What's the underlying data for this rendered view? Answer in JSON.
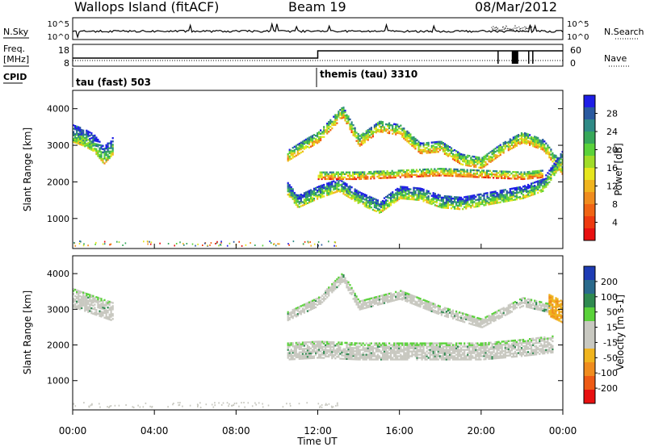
{
  "header": {
    "station": "Wallops Island (fitACF)",
    "beam": "Beam 19",
    "date": "08/Mar/2012"
  },
  "noise_panel": {
    "left_label": "N.Sky",
    "right_label": "N.Search",
    "left_ticks": [
      "10^5",
      "10^0"
    ],
    "right_ticks": [
      "10^5",
      "10^0"
    ]
  },
  "freq_panel": {
    "left_label_1": "Freq.",
    "left_label_2": "[MHz]",
    "right_label": "Nave",
    "left_ticks": [
      "18",
      "8"
    ],
    "right_ticks": [
      "60",
      "0"
    ],
    "cpid_label": "CPID",
    "modes": [
      {
        "name": "tau (fast) 503",
        "start_hour": 0
      },
      {
        "name": "themis (tau) 3310",
        "start_hour": 12
      }
    ]
  },
  "x_axis": {
    "ticks": [
      "00:00",
      "04:00",
      "08:00",
      "12:00",
      "16:00",
      "20:00",
      "00:00"
    ],
    "label": "Time UT"
  },
  "power_panel": {
    "ylabel": "Slant Range [km]",
    "yticks": [
      "4000",
      "3000",
      "2000",
      "1000"
    ],
    "colorbar_label": "Power [dB]",
    "colorbar_ticks": [
      "28",
      "24",
      "20",
      "16",
      "12",
      "8",
      "4"
    ],
    "colorbar_colors": [
      "#1e1ee6",
      "#2a5aa0",
      "#2f8a86",
      "#37a85a",
      "#5ad23a",
      "#a0dc28",
      "#e6e61e",
      "#f0b41e",
      "#f08c1e",
      "#f06414",
      "#ee3a10",
      "#e81010"
    ]
  },
  "velocity_panel": {
    "ylabel": "Slant Range [km]",
    "yticks": [
      "4000",
      "3000",
      "2000",
      "1000"
    ],
    "colorbar_label": "Velocity [m s-1]",
    "colorbar_ticks": [
      "200",
      "100",
      "50",
      "15",
      "-15",
      "-50",
      "-100",
      "-200"
    ],
    "colorbar_colors": [
      "#1e3cb4",
      "#2a6a8c",
      "#2f8a50",
      "#5ad23a",
      "#c8c8c0",
      "#c8c8c0",
      "#f0b41e",
      "#f08c1e",
      "#ee5a14",
      "#e81010"
    ]
  },
  "chart_data": {
    "type": "heatmap",
    "x_range_hours": [
      0,
      24
    ],
    "y_range_km": [
      180,
      4500
    ],
    "power_features": [
      {
        "name": "morning-patch",
        "t_start": 0.0,
        "t_end": 2.0,
        "points": [
          [
            0.0,
            3300
          ],
          [
            0.5,
            3200
          ],
          [
            1.0,
            3050
          ],
          [
            1.5,
            2700
          ],
          [
            2.0,
            3000
          ]
        ],
        "thickness_km": 450,
        "value_db": 24
      },
      {
        "name": "upper-band",
        "t_start": 10.5,
        "t_end": 24.0,
        "points": [
          [
            10.5,
            2700
          ],
          [
            11.5,
            3050
          ],
          [
            12.0,
            3200
          ],
          [
            13.2,
            3900
          ],
          [
            14.0,
            3100
          ],
          [
            15.0,
            3500
          ],
          [
            16.0,
            3400
          ],
          [
            17.0,
            2900
          ],
          [
            18.0,
            2950
          ],
          [
            19.0,
            2600
          ],
          [
            20.0,
            2500
          ],
          [
            21.0,
            2900
          ],
          [
            22.0,
            3200
          ],
          [
            23.0,
            3000
          ],
          [
            24.0,
            2300
          ]
        ],
        "thickness_km": 280,
        "value_db": 18
      },
      {
        "name": "lower-band",
        "t_start": 10.5,
        "t_end": 24.0,
        "points": [
          [
            10.5,
            1800
          ],
          [
            11.0,
            1450
          ],
          [
            12.0,
            1700
          ],
          [
            13.0,
            1900
          ],
          [
            14.0,
            1550
          ],
          [
            15.0,
            1300
          ],
          [
            16.0,
            1700
          ],
          [
            17.0,
            1650
          ],
          [
            18.0,
            1450
          ],
          [
            19.0,
            1400
          ],
          [
            20.0,
            1500
          ],
          [
            21.0,
            1600
          ],
          [
            22.0,
            1700
          ],
          [
            23.0,
            1900
          ],
          [
            24.0,
            2700
          ]
        ],
        "thickness_km": 330,
        "value_db": 24
      },
      {
        "name": "middle-band",
        "t_start": 12.0,
        "t_end": 23.0,
        "points": [
          [
            12.0,
            2150
          ],
          [
            14.0,
            2150
          ],
          [
            16.0,
            2200
          ],
          [
            18.0,
            2250
          ],
          [
            20.0,
            2200
          ],
          [
            22.0,
            2150
          ],
          [
            23.0,
            2200
          ]
        ],
        "thickness_km": 180,
        "value_db": 14
      }
    ],
    "velocity_features": [
      {
        "name": "morning-patch",
        "t_start": 0.0,
        "t_end": 2.0,
        "points": [
          [
            0.0,
            3300
          ],
          [
            1.0,
            3100
          ],
          [
            2.0,
            2900
          ]
        ],
        "thickness_km": 500,
        "value_ms": 0
      },
      {
        "name": "upper-band",
        "t_start": 10.5,
        "t_end": 23.5,
        "points": [
          [
            10.5,
            2800
          ],
          [
            12.0,
            3200
          ],
          [
            13.2,
            3900
          ],
          [
            14.0,
            3100
          ],
          [
            16.0,
            3400
          ],
          [
            18.0,
            2950
          ],
          [
            20.0,
            2600
          ],
          [
            22.0,
            3200
          ],
          [
            23.5,
            3000
          ]
        ],
        "thickness_km": 250,
        "value_ms": 0
      },
      {
        "name": "main-band",
        "t_start": 10.5,
        "t_end": 23.5,
        "points": [
          [
            10.5,
            1800
          ],
          [
            12.0,
            1850
          ],
          [
            14.0,
            1800
          ],
          [
            16.0,
            1800
          ],
          [
            18.0,
            1800
          ],
          [
            20.0,
            1800
          ],
          [
            22.0,
            1900
          ],
          [
            23.5,
            2000
          ]
        ],
        "thickness_km": 450,
        "value_ms": 0
      },
      {
        "name": "dawn-edge",
        "t_start": 23.3,
        "t_end": 24.0,
        "points": [
          [
            23.3,
            3100
          ],
          [
            24.0,
            2900
          ]
        ],
        "thickness_km": 600,
        "value_ms": -60
      }
    ]
  }
}
